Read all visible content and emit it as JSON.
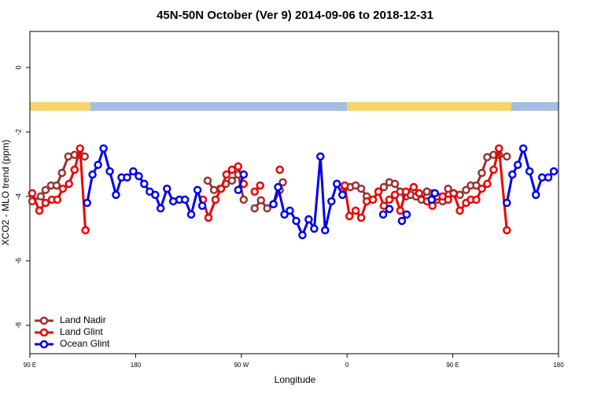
{
  "chart_data": {
    "type": "line",
    "title": "45N-50N October (Ver 9)   2014-09-06 to 2018-12-31",
    "xlabel": "Longitude",
    "ylabel": "XCO2 - MLO trend (ppm)",
    "xlim": [
      90,
      540
    ],
    "xticks": [
      {
        "value": 90,
        "label": "90 E"
      },
      180,
      {
        "value": 270,
        "label": "90 W"
      },
      {
        "value": 360,
        "label": "0"
      },
      {
        "value": 450,
        "label": "90 E"
      },
      {
        "value": 540,
        "label": "180"
      }
    ],
    "ylim": [
      -8.88,
      1.12
    ],
    "yticks": [
      0,
      -2,
      -4,
      -6,
      -8
    ],
    "legend": "bottomleft",
    "series": [
      {
        "name": "Land Nadir",
        "color": "#993333",
        "x": [
          92,
          99.3,
          103.3,
          108,
          112.7,
          117.3,
          122.7,
          128,
          132.7,
          136.7,
          null,
          241.3,
          246.7,
          252,
          256.7,
          262,
          267.3,
          272,
          null,
          281.3,
          286.7,
          292,
          297.3,
          302.7,
          305.3,
          null,
          358,
          362.7,
          367.3,
          372,
          376.7,
          382,
          386.7,
          391.3,
          396,
          400.7,
          405.3,
          410,
          414,
          418.7,
          423.3,
          428,
          432.7,
          436.7,
          441.3,
          446,
          450.7,
          456,
          461.3,
          465.3,
          470,
          474.7,
          479.3,
          484.7,
          489.3,
          496
        ],
        "values": [
          -4.15,
          -4.0,
          -3.8,
          -3.66,
          -3.66,
          -3.27,
          -2.76,
          -2.71,
          -2.71,
          -2.76,
          null,
          -3.51,
          -3.8,
          -3.76,
          -3.61,
          -3.51,
          -3.32,
          -4.1,
          null,
          -4.37,
          -4.12,
          -4.37,
          -4.24,
          -3.8,
          -3.56,
          null,
          -3.71,
          -3.71,
          -3.66,
          -3.76,
          -4.0,
          -4.1,
          -3.85,
          -3.71,
          -3.56,
          -3.61,
          -3.85,
          -4.0,
          -3.95,
          -4.0,
          -4.1,
          -3.85,
          -3.9,
          -4.1,
          -4.15,
          -3.76,
          -3.9,
          -3.95,
          -3.8,
          -3.66,
          -3.66,
          -3.27,
          -2.78,
          -2.71,
          -2.71,
          -2.76
        ]
      },
      {
        "name": "Land Glint",
        "color": "#ee0000",
        "x": [
          92,
          98,
          103.3,
          108.7,
          113.3,
          118,
          123.3,
          128,
          132.7,
          137.3,
          null,
          237.3,
          242,
          248,
          252.7,
          257.3,
          262,
          267.3,
          272,
          null,
          281.3,
          286,
          null,
          302.7,
          null,
          358,
          362,
          367.3,
          372,
          376.7,
          382,
          386.7,
          391.3,
          396,
          400.7,
          405.3,
          410,
          416.7,
          421.3,
          428,
          432.7,
          436.7,
          441.3,
          446,
          450.7,
          456,
          461.3,
          465.3,
          470,
          474.7,
          479.3,
          484.7,
          489.3,
          496
        ],
        "values": [
          -3.9,
          -4.44,
          -4.2,
          -4.1,
          -4.1,
          -3.76,
          -3.61,
          -3.17,
          -2.51,
          -5.05,
          null,
          -4.1,
          -4.66,
          -4.1,
          -3.76,
          -3.32,
          -3.17,
          -3.07,
          -3.61,
          null,
          -3.85,
          -3.66,
          null,
          -3.17,
          null,
          -3.66,
          -4.61,
          -4.44,
          -4.66,
          -4.15,
          -4.1,
          -3.85,
          -4.29,
          -4.1,
          -3.95,
          -4.44,
          -3.85,
          -3.71,
          -3.9,
          -4.15,
          -4.29,
          -4.0,
          -4.0,
          -4.1,
          -3.9,
          -4.44,
          -4.2,
          -4.1,
          -4.1,
          -3.76,
          -3.61,
          -3.17,
          -2.51,
          -5.05
        ]
      },
      {
        "name": "Ocean Glint",
        "color": "#0000ee",
        "x": [
          138.7,
          143.3,
          148,
          152.7,
          158,
          163.3,
          168,
          172.7,
          178,
          182.7,
          187.3,
          192,
          196.7,
          201.3,
          206.7,
          212,
          217.3,
          222,
          227.3,
          232.7,
          236.7,
          null,
          267.3,
          272,
          null,
          297.3,
          301.3,
          306.7,
          311.3,
          316.7,
          322,
          327.3,
          332,
          337.3,
          341.3,
          346.7,
          351.3,
          356,
          null,
          390.7,
          396,
          null,
          406.7,
          410.7,
          null,
          432,
          434.7,
          null,
          496,
          500.7,
          505.3,
          510,
          515.3,
          520.7,
          526,
          531.3,
          536
        ],
        "values": [
          -4.2,
          -3.32,
          -3.02,
          -2.51,
          -3.22,
          -3.95,
          -3.41,
          -3.41,
          -3.22,
          -3.37,
          -3.61,
          -3.85,
          -3.95,
          -4.37,
          -3.76,
          -4.15,
          -4.1,
          -4.1,
          -4.56,
          -3.8,
          -4.29,
          null,
          -3.8,
          -3.32,
          null,
          -4.24,
          -3.71,
          -4.56,
          -4.44,
          -4.76,
          -5.2,
          -4.71,
          -5.0,
          -2.76,
          -5.05,
          -4.15,
          -3.61,
          -3.95,
          null,
          -4.56,
          -4.39,
          null,
          -4.76,
          -4.56,
          null,
          -4.1,
          -3.9,
          null,
          -4.2,
          -3.32,
          -3.02,
          -2.51,
          -3.22,
          -3.95,
          -3.41,
          -3.41,
          -3.22
        ]
      }
    ]
  }
}
